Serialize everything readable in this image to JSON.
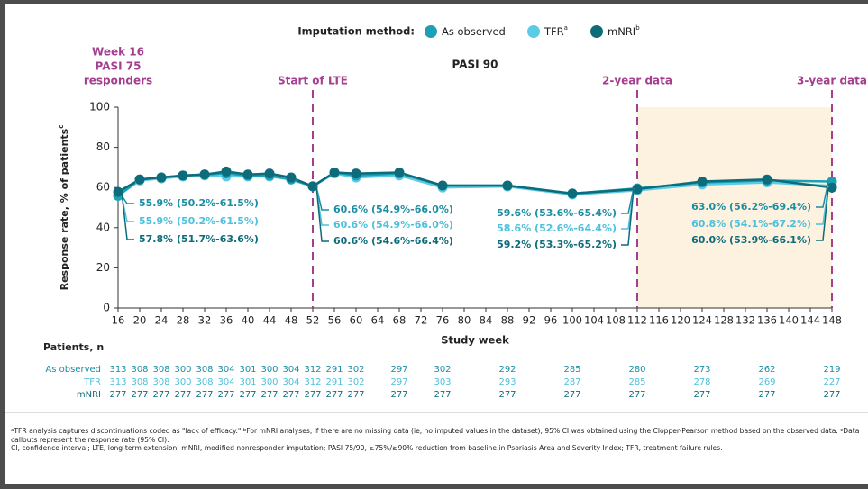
{
  "chart_data": {
    "type": "line",
    "title": "PASI 90",
    "legend_title": "Imputation method:",
    "x_label": "Study week",
    "y_label": "Response rate, % of patients",
    "y_label_note": "c",
    "x": [
      16,
      20,
      24,
      28,
      32,
      36,
      40,
      44,
      48,
      52,
      56,
      60,
      68,
      76,
      88,
      100,
      112,
      124,
      136,
      148
    ],
    "xlim": [
      16,
      148
    ],
    "xticks": [
      16,
      20,
      24,
      28,
      32,
      36,
      40,
      44,
      48,
      52,
      56,
      60,
      64,
      68,
      72,
      76,
      80,
      84,
      88,
      92,
      96,
      100,
      104,
      108,
      112,
      116,
      120,
      124,
      128,
      132,
      136,
      140,
      144,
      148
    ],
    "ylim": [
      0,
      100
    ],
    "yticks": [
      0,
      20,
      40,
      60,
      80,
      100
    ],
    "series": [
      {
        "name": "As observed",
        "note": "",
        "color": "#1ba0b6",
        "label_color": "#1a8ea3",
        "values": [
          55.9,
          64,
          65,
          66,
          66.5,
          67,
          66,
          66,
          64,
          60.6,
          67.5,
          66,
          67,
          61,
          61,
          57,
          59.6,
          62.5,
          63.5,
          63.0
        ],
        "value_labels": [
          "55.9% (50.2%-61.5%)",
          null,
          null,
          null,
          null,
          null,
          null,
          null,
          null,
          "60.6% (54.9%-66.0%)",
          null,
          null,
          null,
          null,
          null,
          null,
          "59.6% (53.6%-65.4%)",
          null,
          null,
          "63.0% (56.2%-69.4%)"
        ]
      },
      {
        "name": "TFR",
        "note": "a",
        "color": "#5ccbe6",
        "label_color": "#4fc0dc",
        "values": [
          55.9,
          63.5,
          64.5,
          65.5,
          66,
          65.5,
          65.5,
          65.5,
          64,
          60.6,
          67,
          65,
          66,
          60,
          60.5,
          56.5,
          58.6,
          61.5,
          62.5,
          60.8
        ],
        "value_labels": [
          "55.9% (50.2%-61.5%)",
          null,
          null,
          null,
          null,
          null,
          null,
          null,
          null,
          "60.6% (54.9%-66.0%)",
          null,
          null,
          null,
          null,
          null,
          null,
          "58.6% (52.6%-64.4%)",
          null,
          null,
          "60.8% (54.1%-67.2%)"
        ]
      },
      {
        "name": "mNRI",
        "note": "b",
        "color": "#0e6c7a",
        "label_color": "#0e6c7a",
        "values": [
          57.8,
          64,
          65,
          66,
          66.5,
          68,
          66.5,
          67,
          65,
          60.6,
          67.5,
          67,
          67.5,
          61,
          61,
          57,
          59.2,
          63,
          64,
          60.0
        ],
        "value_labels": [
          "57.8% (51.7%-63.6%)",
          null,
          null,
          null,
          null,
          null,
          null,
          null,
          null,
          "60.6% (54.6%-66.4%)",
          null,
          null,
          null,
          null,
          null,
          null,
          "59.2% (53.3%-65.2%)",
          null,
          null,
          "60.0% (53.9%-66.1%)"
        ]
      }
    ],
    "milestones": [
      {
        "x": 16,
        "lines": [
          "Week 16",
          "PASI 75",
          "responders"
        ],
        "dashed": false
      },
      {
        "x": 52,
        "lines": [
          "Start of LTE"
        ],
        "dashed": true
      },
      {
        "x": 112,
        "lines": [
          "2-year data"
        ],
        "dashed": true
      },
      {
        "x": 148,
        "lines": [
          "3-year data"
        ],
        "dashed": true
      }
    ],
    "shaded_range": [
      112,
      148
    ],
    "shade_color": "#fdf1df",
    "milestone_color": "#a43e8f"
  },
  "patients": {
    "title": "Patients, n",
    "rows": [
      {
        "label": "As observed",
        "counts": [
          313,
          308,
          308,
          300,
          308,
          304,
          301,
          300,
          304,
          312,
          291,
          302,
          297,
          302,
          292,
          285,
          280,
          273,
          262,
          219
        ]
      },
      {
        "label": "TFR",
        "counts": [
          313,
          308,
          308,
          300,
          308,
          304,
          301,
          300,
          304,
          312,
          291,
          302,
          297,
          303,
          293,
          287,
          285,
          278,
          269,
          227
        ]
      },
      {
        "label": "mNRI",
        "counts": [
          277,
          277,
          277,
          277,
          277,
          277,
          277,
          277,
          277,
          277,
          277,
          277,
          277,
          277,
          277,
          277,
          277,
          277,
          277,
          277
        ]
      }
    ]
  },
  "footnotes": {
    "marked": [
      {
        "mark": "a",
        "text": "TFR analysis captures discontinuations coded as \"lack of efficacy.\" "
      },
      {
        "mark": "b",
        "text": "For mNRI analyses, if there are no missing data (ie, no imputed values in the dataset), 95% CI was obtained using the Clopper-Pearson method based on the observed data. "
      },
      {
        "mark": "c",
        "text": "Data callouts represent the response rate (95% CI)."
      }
    ],
    "abbreviations": "CI, confidence interval; LTE, long-term extension; mNRI, modified nonresponder imputation; PASI 75/90, ≥75%/≥90% reduction from baseline in Psoriasis Area and Severity Index; TFR, treatment failure rules."
  }
}
